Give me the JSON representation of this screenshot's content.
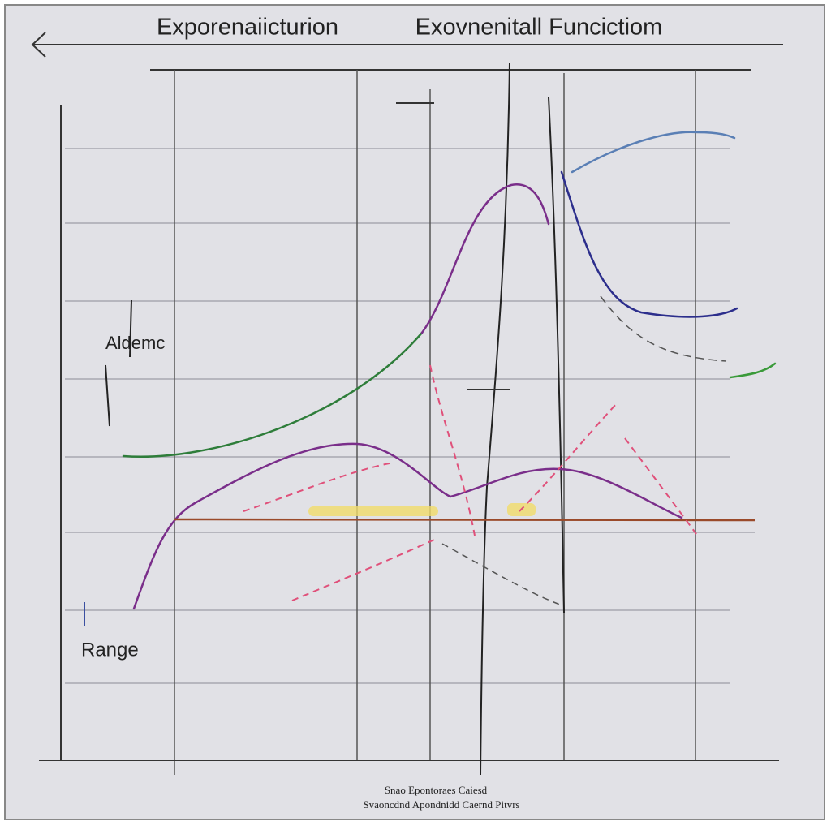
{
  "header": {
    "left_title": "Exporenaiicturion",
    "right_title": "Exovnenitall Funcictiom"
  },
  "annotations": {
    "upper": "Aldemc",
    "lower": "Range"
  },
  "footer": {
    "line1": "Snao Epontoraes Caiesd",
    "line2": "Svaoncdnd Apondnidd Caernd Pitvrs"
  }
}
